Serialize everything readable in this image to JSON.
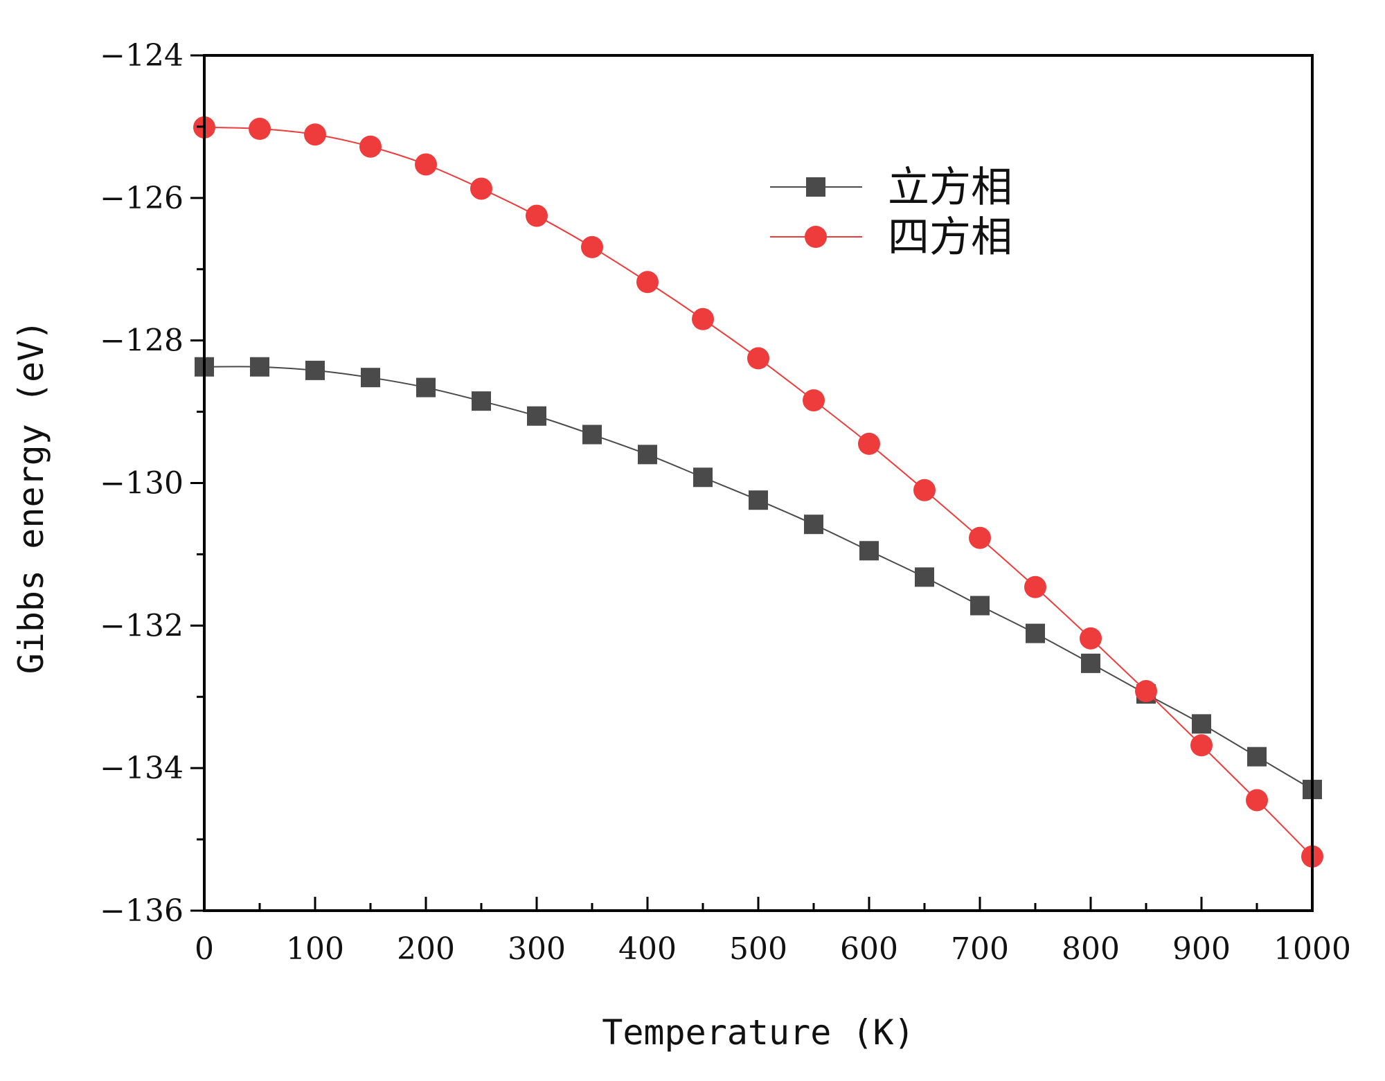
{
  "chart_data": {
    "type": "line",
    "xlabel": "Temperature (K)",
    "ylabel": "Gibbs energy (eV)",
    "xlim": [
      0,
      1000
    ],
    "ylim": [
      -136,
      -124
    ],
    "xticks": [
      0,
      100,
      200,
      300,
      400,
      500,
      600,
      700,
      800,
      900,
      1000
    ],
    "yticks": [
      -136,
      -134,
      -132,
      -130,
      -128,
      -126,
      -124
    ],
    "xtick_labels": [
      "0",
      "100",
      "200",
      "300",
      "400",
      "500",
      "600",
      "700",
      "800",
      "900",
      "1000"
    ],
    "ytick_labels": [
      "−136",
      "−134",
      "−132",
      "−130",
      "−128",
      "−126",
      "−124"
    ],
    "grid": false,
    "legend_position": "top-right",
    "x": [
      0,
      50,
      100,
      150,
      200,
      250,
      300,
      350,
      400,
      450,
      500,
      550,
      600,
      650,
      700,
      750,
      800,
      850,
      900,
      950,
      1000
    ],
    "series": [
      {
        "name": "立方相",
        "marker": "square",
        "color": "#4a4a4a",
        "values": [
          -128.37,
          -128.37,
          -128.42,
          -128.52,
          -128.66,
          -128.85,
          -129.06,
          -129.32,
          -129.6,
          -129.92,
          -130.24,
          -130.58,
          -130.95,
          -131.32,
          -131.72,
          -132.11,
          -132.53,
          -132.96,
          -133.38,
          -133.84,
          -134.3
        ]
      },
      {
        "name": "四方相",
        "marker": "circle",
        "color": "#ee3b3b",
        "values": [
          -125.01,
          -125.03,
          -125.11,
          -125.28,
          -125.53,
          -125.87,
          -126.25,
          -126.69,
          -127.18,
          -127.7,
          -128.25,
          -128.84,
          -129.45,
          -130.1,
          -130.77,
          -131.46,
          -132.18,
          -132.92,
          -133.68,
          -134.45,
          -135.24
        ]
      }
    ]
  }
}
